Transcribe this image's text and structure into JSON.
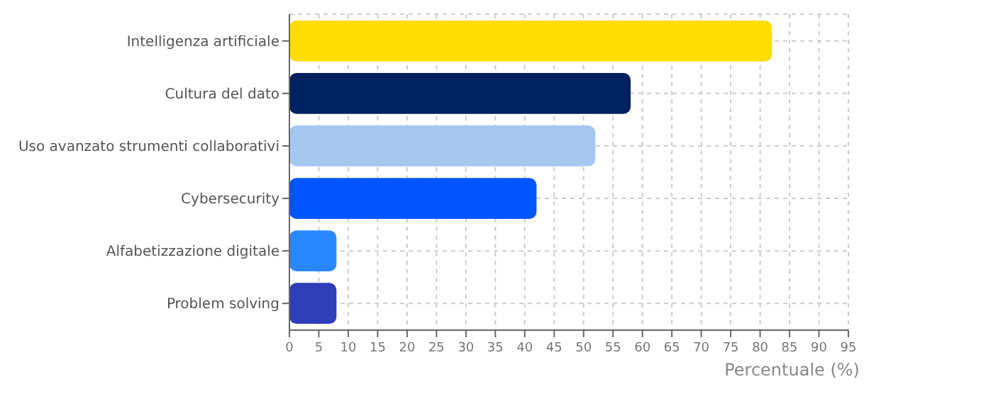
{
  "chart_data": {
    "type": "bar",
    "orientation": "horizontal",
    "xlabel": "Percentuale (%)",
    "categories": [
      "Intelligenza artificiale",
      "Cultura del dato",
      "Uso avanzato strumenti collaborativi",
      "Cybersecurity",
      "Alfabetizzazione digitale",
      "Problem solving"
    ],
    "values": [
      82,
      58,
      52,
      42,
      8,
      8
    ],
    "colors": [
      "#ffdd00",
      "#002060",
      "#a6c8f0",
      "#0055ff",
      "#2a88ff",
      "#2e3db8"
    ],
    "xlim": [
      0,
      95
    ],
    "xticks": [
      0,
      5,
      10,
      15,
      20,
      25,
      30,
      35,
      40,
      45,
      50,
      55,
      60,
      65,
      70,
      75,
      80,
      85,
      90,
      95
    ],
    "grid": true
  }
}
